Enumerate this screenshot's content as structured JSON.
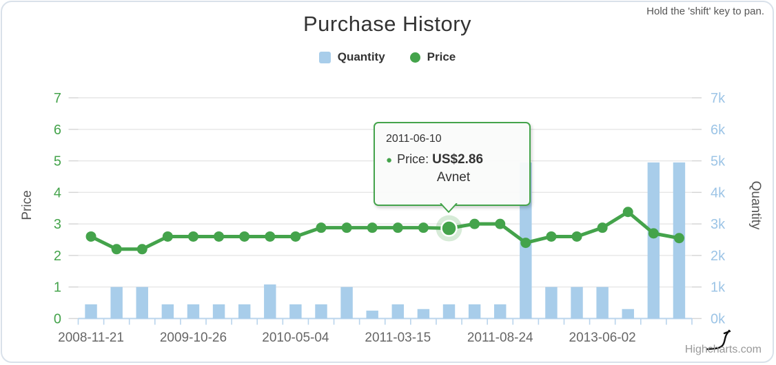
{
  "header": {
    "pan_hint": "Hold the 'shift' key to pan."
  },
  "footer": {
    "credit": "Highcharts.com"
  },
  "chart_data": {
    "type": "bar+line combo",
    "title": "Purchase History",
    "legend": [
      "Quantity",
      "Price"
    ],
    "legend_position": "top-center",
    "grid": "horizontal",
    "categories": [
      "2008-11-21",
      "",
      "",
      "",
      "2009-10-26",
      "",
      "",
      "",
      "2010-05-04",
      "",
      "",
      "",
      "2011-03-15",
      "",
      "2011-06-10",
      "",
      "2011-08-24",
      "",
      "",
      "",
      "2013-06-02",
      "",
      "",
      ""
    ],
    "x_label_interval": 4,
    "series": [
      {
        "name": "Quantity",
        "type": "bar",
        "axis": "right",
        "color": "#a8cdea",
        "values": [
          450,
          1000,
          1000,
          450,
          450,
          450,
          450,
          1080,
          450,
          450,
          1000,
          250,
          450,
          300,
          450,
          450,
          450,
          4950,
          1000,
          1000,
          1000,
          300,
          4950,
          4950
        ]
      },
      {
        "name": "Price",
        "type": "line",
        "axis": "left",
        "color": "#44a34b",
        "values": [
          2.6,
          2.2,
          2.2,
          2.6,
          2.6,
          2.6,
          2.6,
          2.6,
          2.6,
          2.88,
          2.88,
          2.88,
          2.88,
          2.88,
          2.86,
          3.0,
          3.0,
          2.4,
          2.6,
          2.6,
          2.88,
          3.38,
          2.7,
          2.55
        ]
      }
    ],
    "y_left": {
      "title": "Price",
      "min": 0,
      "max": 7,
      "tick_labels": [
        "0",
        "1",
        "2",
        "3",
        "4",
        "5",
        "6",
        "7"
      ],
      "label_color": "#44a34b"
    },
    "y_right": {
      "title": "Quantity",
      "min": 0,
      "max": 7000,
      "tick_labels": [
        "0k",
        "1k",
        "2k",
        "3k",
        "4k",
        "5k",
        "6k",
        "7k"
      ],
      "label_color": "#9cc4e6"
    },
    "axis_title_color": "#555",
    "x_label_color": "#666",
    "gridline_color": "#e6e6e6",
    "x_axis_color": "#b9d4ec",
    "hover_point_index": 14,
    "tooltip": {
      "date": "2011-06-10",
      "bullet": "●",
      "label": "Price:",
      "value": "US$2.86",
      "vendor": "Avnet"
    }
  }
}
